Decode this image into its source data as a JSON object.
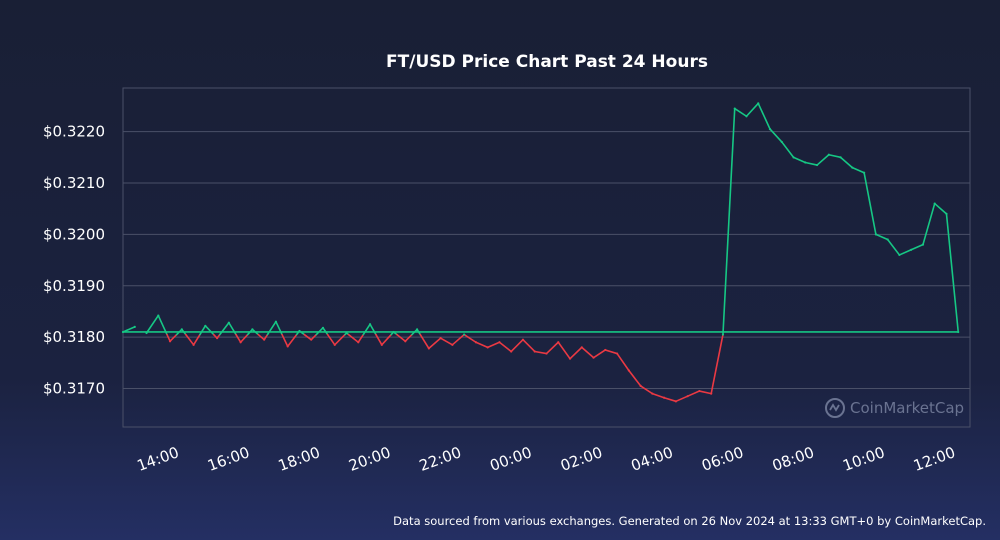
{
  "chart_data": {
    "type": "line",
    "title": "FT/USD Price Chart Past 24 Hours",
    "xlabel": "",
    "ylabel": "",
    "x_ticks": [
      "14:00",
      "16:00",
      "18:00",
      "20:00",
      "22:00",
      "00:00",
      "02:00",
      "04:00",
      "06:00",
      "08:00",
      "10:00",
      "12:00"
    ],
    "y_ticks": [
      "$0.3170",
      "$0.3180",
      "$0.3190",
      "$0.3200",
      "$0.3210",
      "$0.3220"
    ],
    "ylim": [
      0.31625,
      0.32285
    ],
    "baseline": 0.31805,
    "grid": true,
    "series": [
      {
        "x": [
          "13:40",
          "14:00",
          "14:20",
          "14:40",
          "15:00",
          "15:20",
          "15:40",
          "16:00",
          "16:20",
          "16:40",
          "17:00",
          "17:20",
          "17:40",
          "18:00",
          "18:20",
          "18:40",
          "19:00",
          "19:20",
          "19:40",
          "20:00",
          "20:20",
          "20:40",
          "21:00",
          "21:20",
          "21:40",
          "22:00",
          "22:20",
          "22:40",
          "23:00",
          "23:20",
          "23:40",
          "00:00",
          "00:20",
          "00:40",
          "01:00",
          "01:20",
          "01:40",
          "02:00",
          "02:20",
          "02:40",
          "03:00",
          "03:20",
          "03:40",
          "04:00",
          "04:20",
          "04:40",
          "05:00",
          "05:20",
          "05:40",
          "06:00",
          "06:20",
          "06:40",
          "07:00",
          "07:20",
          "07:40",
          "08:00",
          "08:20",
          "08:40",
          "09:00",
          "09:20",
          "09:40",
          "10:00",
          "10:20",
          "10:40",
          "11:00",
          "11:20",
          "11:40",
          "12:00",
          "12:20",
          "12:40",
          "13:00",
          "13:20"
        ],
        "values": [
          0.31808,
          0.31842,
          0.31792,
          0.31815,
          0.31785,
          0.31822,
          0.31798,
          0.31828,
          0.3179,
          0.31815,
          0.31795,
          0.3183,
          0.31782,
          0.31812,
          0.31795,
          0.31818,
          0.31785,
          0.31808,
          0.3179,
          0.31825,
          0.31785,
          0.3181,
          0.31792,
          0.31815,
          0.31778,
          0.31798,
          0.31785,
          0.31805,
          0.3179,
          0.3178,
          0.3179,
          0.31772,
          0.31795,
          0.31772,
          0.31768,
          0.3179,
          0.31758,
          0.3178,
          0.3176,
          0.31775,
          0.31768,
          0.31735,
          0.31705,
          0.3169,
          0.31682,
          0.31675,
          0.31685,
          0.31695,
          0.3169,
          0.31805,
          0.32245,
          0.3223,
          0.32255,
          0.32205,
          0.3218,
          0.3215,
          0.3214,
          0.32135,
          0.32155,
          0.3215,
          0.3213,
          0.3212,
          0.32,
          0.3199,
          0.3196,
          0.3197,
          0.3198,
          0.3206,
          0.3204,
          0.3181,
          0.3181,
          0.3182
        ]
      }
    ],
    "colors": {
      "up": "#16c784",
      "down": "#ea3943",
      "grid": "#4a5068",
      "frame": "#4a5068"
    }
  },
  "watermark": {
    "text": "CoinMarketCap"
  },
  "footer": {
    "text": "Data sourced from various exchanges. Generated on 26 Nov 2024 at 13:33 GMT+0 by CoinMarketCap."
  }
}
